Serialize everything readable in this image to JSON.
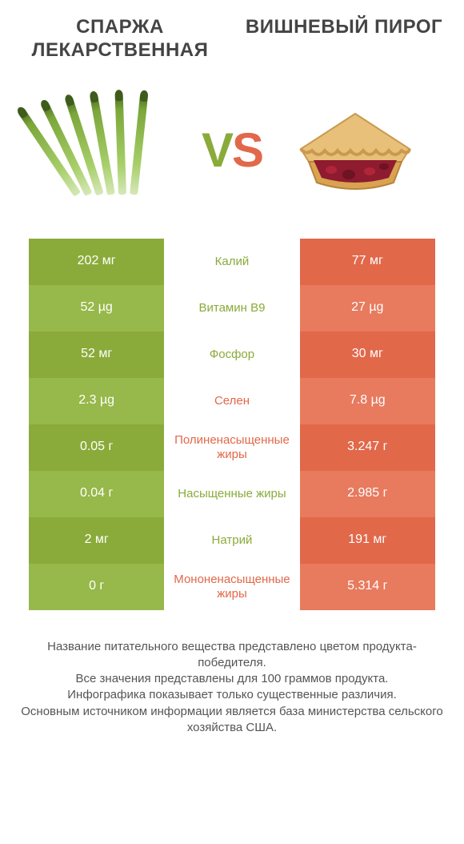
{
  "colors": {
    "left": "#8aab3a",
    "left_alt": "#97b84a",
    "right": "#e2684a",
    "right_alt": "#e87a5e",
    "mid_left": "#8aab3a",
    "mid_right": "#e2684a"
  },
  "header": {
    "left_title": "СПАРЖА ЛЕКАРСТВЕННАЯ",
    "right_title": "ВИШНЕВЫЙ ПИРОГ",
    "vs_v": "V",
    "vs_s": "S"
  },
  "table": {
    "rows": [
      {
        "left": "202 мг",
        "label": "Калий",
        "right": "77 мг",
        "winner": "left"
      },
      {
        "left": "52 µg",
        "label": "Витамин B9",
        "right": "27 µg",
        "winner": "left"
      },
      {
        "left": "52 мг",
        "label": "Фосфор",
        "right": "30 мг",
        "winner": "left"
      },
      {
        "left": "2.3 µg",
        "label": "Селен",
        "right": "7.8 µg",
        "winner": "right"
      },
      {
        "left": "0.05 г",
        "label": "Полиненасыщенные жиры",
        "right": "3.247 г",
        "winner": "right"
      },
      {
        "left": "0.04 г",
        "label": "Насыщенные жиры",
        "right": "2.985 г",
        "winner": "left"
      },
      {
        "left": "2 мг",
        "label": "Натрий",
        "right": "191 мг",
        "winner": "left"
      },
      {
        "left": "0 г",
        "label": "Мононенасыщенные жиры",
        "right": "5.314 г",
        "winner": "right"
      }
    ]
  },
  "footnote": {
    "line1": "Название питательного вещества представлено цветом продукта-победителя.",
    "line2": "Все значения представлены для 100 граммов продукта.",
    "line3": "Инфографика показывает только существенные различия.",
    "line4": "Основным источником информации является база министерства сельского хозяйства США."
  }
}
